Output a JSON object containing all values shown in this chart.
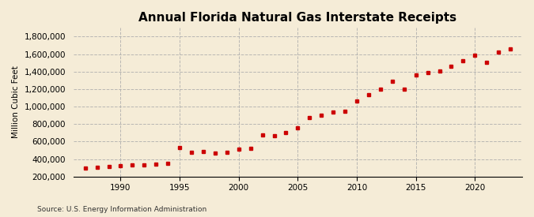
{
  "title": "Annual Florida Natural Gas Interstate Receipts",
  "ylabel": "Million Cubic Feet",
  "source": "Source: U.S. Energy Information Administration",
  "background_color": "#f5ecd7",
  "plot_bg_color": "#f5ecd7",
  "marker_color": "#cc0000",
  "years": [
    1987,
    1988,
    1989,
    1990,
    1991,
    1992,
    1993,
    1994,
    1995,
    1996,
    1997,
    1998,
    1999,
    2000,
    2001,
    2002,
    2003,
    2004,
    2005,
    2006,
    2007,
    2008,
    2009,
    2010,
    2011,
    2012,
    2013,
    2014,
    2015,
    2016,
    2017,
    2018,
    2019,
    2020,
    2021,
    2022,
    2023
  ],
  "values": [
    300000,
    310000,
    315000,
    325000,
    330000,
    335000,
    340000,
    355000,
    530000,
    480000,
    490000,
    465000,
    475000,
    515000,
    525000,
    680000,
    670000,
    700000,
    760000,
    875000,
    900000,
    940000,
    950000,
    1060000,
    1140000,
    1200000,
    1290000,
    1200000,
    1360000,
    1390000,
    1410000,
    1460000,
    1520000,
    1590000,
    1510000,
    1620000,
    1660000
  ],
  "xlim": [
    1986,
    2024
  ],
  "ylim": [
    200000,
    1900000
  ],
  "yticks": [
    200000,
    400000,
    600000,
    800000,
    1000000,
    1200000,
    1400000,
    1600000,
    1800000
  ],
  "xticks": [
    1990,
    1995,
    2000,
    2005,
    2010,
    2015,
    2020
  ]
}
